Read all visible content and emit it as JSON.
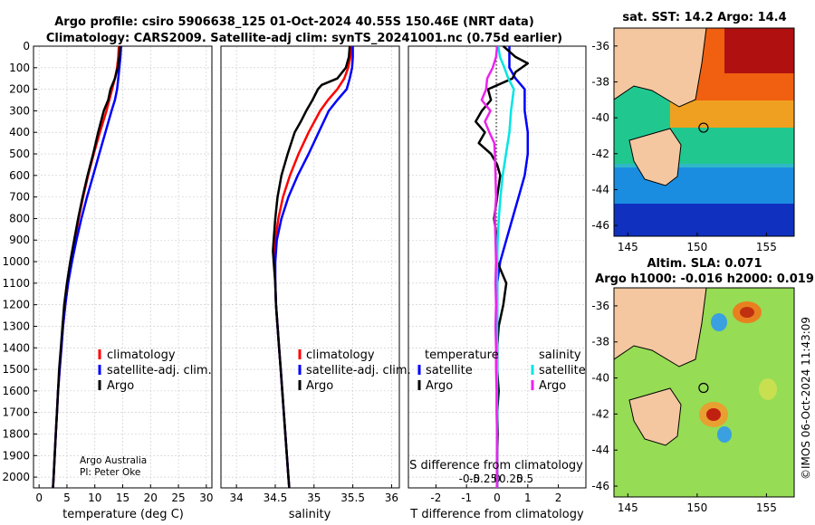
{
  "header": {
    "title_line1": "Argo profile: csiro 5906638_125 01-Oct-2024 40.55S 150.46E (NRT data)",
    "title_line2": "Climatology: CARS2009. Satellite-adj clim: synTS_20241001.nc (0.75d earlier)"
  },
  "credit": {
    "line1": "Argo Australia",
    "line2": "PI: Peter Oke"
  },
  "timestamp": "©IMOS 06-Oct-2024 11:43:09",
  "colors": {
    "climatology": "#ff0000",
    "satellite": "#0000ff",
    "argo": "#000000",
    "sat_diff_t": "#00e5e5",
    "argo_diff_s": "#ee22ee",
    "zero_line": "#000000"
  },
  "depth_axis": {
    "ticks": [
      0,
      100,
      200,
      300,
      400,
      500,
      600,
      700,
      800,
      900,
      1000,
      1100,
      1200,
      1300,
      1400,
      1500,
      1600,
      1700,
      1800,
      1900,
      2000
    ],
    "range": [
      0,
      2050
    ]
  },
  "chart_data": [
    {
      "type": "line",
      "name": "temperature",
      "xlabel": "temperature (deg C)",
      "xlim": [
        -1,
        31
      ],
      "xticks": [
        0,
        5,
        10,
        15,
        20,
        25,
        30
      ],
      "legend": {
        "climatology": "climatology",
        "satellite": "satellite-adj. clim.",
        "argo": "Argo"
      },
      "series": [
        {
          "name": "climatology",
          "color": "#ff0000",
          "depth": [
            0,
            50,
            100,
            150,
            200,
            250,
            300,
            400,
            500,
            600,
            700,
            800,
            900,
            1000,
            1100,
            1200,
            1300,
            1400,
            1500,
            1600,
            1700,
            1800,
            1900,
            2000,
            2050
          ],
          "values": [
            14.3,
            14.2,
            14.0,
            13.6,
            13.1,
            12.6,
            12.1,
            10.9,
            9.8,
            8.8,
            7.9,
            7.1,
            6.4,
            5.8,
            5.2,
            4.7,
            4.3,
            4.0,
            3.7,
            3.4,
            3.2,
            3.0,
            2.8,
            2.6,
            2.5
          ]
        },
        {
          "name": "satellite",
          "color": "#0000ff",
          "depth": [
            0,
            50,
            100,
            150,
            200,
            250,
            300,
            400,
            500,
            600,
            700,
            800,
            900,
            1000,
            1100,
            1200,
            1300,
            1400,
            1500,
            1600,
            1700,
            1800,
            1900,
            2000,
            2050
          ],
          "values": [
            14.7,
            14.6,
            14.4,
            14.2,
            14.0,
            13.6,
            13.0,
            11.9,
            10.8,
            9.7,
            8.6,
            7.6,
            6.7,
            5.9,
            5.2,
            4.7,
            4.3,
            4.0,
            3.7,
            3.4,
            3.2,
            3.0,
            2.8,
            2.6,
            2.5
          ]
        },
        {
          "name": "argo",
          "color": "#000000",
          "depth": [
            0,
            50,
            100,
            150,
            200,
            250,
            300,
            350,
            400,
            500,
            600,
            700,
            800,
            900,
            1000,
            1100,
            1200,
            1300,
            1400,
            1500,
            1600,
            1700,
            1800,
            1900,
            2000,
            2050
          ],
          "values": [
            14.5,
            14.4,
            14.1,
            13.6,
            12.8,
            12.4,
            11.6,
            11.1,
            10.6,
            9.7,
            8.7,
            7.8,
            7.0,
            6.3,
            5.6,
            5.0,
            4.5,
            4.2,
            3.9,
            3.6,
            3.4,
            3.2,
            3.0,
            2.8,
            2.6,
            2.5
          ]
        }
      ]
    },
    {
      "type": "line",
      "name": "salinity",
      "xlabel": "salinity",
      "xlim": [
        33.8,
        36.1
      ],
      "xticks": [
        34,
        34.5,
        35,
        35.5,
        36
      ],
      "xticklabels": [
        "34",
        "34.5",
        "35",
        "35.5",
        "36"
      ],
      "legend": {
        "climatology": "climatology",
        "satellite": "satellite-adj. clim.",
        "argo": "Argo"
      },
      "series": [
        {
          "name": "climatology",
          "color": "#ff0000",
          "depth": [
            0,
            50,
            100,
            150,
            200,
            250,
            300,
            400,
            500,
            600,
            700,
            800,
            900,
            1000,
            1100,
            1200,
            1300,
            1400,
            1500,
            1600,
            1700,
            1800,
            1900,
            2000,
            2050
          ],
          "values": [
            35.48,
            35.47,
            35.44,
            35.39,
            35.3,
            35.18,
            35.08,
            34.93,
            34.8,
            34.69,
            34.6,
            34.54,
            34.5,
            34.49,
            34.5,
            34.51,
            34.53,
            34.55,
            34.57,
            34.59,
            34.61,
            34.63,
            34.65,
            34.67,
            34.68
          ]
        },
        {
          "name": "satellite",
          "color": "#0000ff",
          "depth": [
            0,
            50,
            100,
            150,
            200,
            250,
            300,
            400,
            500,
            600,
            700,
            800,
            900,
            1000,
            1100,
            1200,
            1300,
            1400,
            1500,
            1600,
            1700,
            1800,
            1900,
            2000,
            2050
          ],
          "values": [
            35.5,
            35.5,
            35.49,
            35.46,
            35.42,
            35.3,
            35.19,
            35.06,
            34.93,
            34.79,
            34.67,
            34.58,
            34.52,
            34.5,
            34.5,
            34.51,
            34.53,
            34.55,
            34.57,
            34.59,
            34.61,
            34.63,
            34.65,
            34.67,
            34.68
          ]
        },
        {
          "name": "argo",
          "color": "#000000",
          "depth": [
            0,
            50,
            100,
            150,
            180,
            200,
            250,
            300,
            350,
            400,
            500,
            600,
            700,
            800,
            900,
            950,
            1000,
            1100,
            1200,
            1300,
            1400,
            1500,
            1600,
            1700,
            1800,
            1900,
            2000,
            2050
          ],
          "values": [
            35.46,
            35.45,
            35.41,
            35.3,
            35.1,
            35.05,
            34.98,
            34.9,
            34.83,
            34.75,
            34.66,
            34.58,
            34.53,
            34.5,
            34.48,
            34.47,
            34.48,
            34.5,
            34.51,
            34.53,
            34.55,
            34.57,
            34.59,
            34.61,
            34.63,
            34.65,
            34.67,
            34.68
          ]
        }
      ]
    },
    {
      "type": "line",
      "name": "differences",
      "xlabel": "T difference from climatology",
      "xlim": [
        -2.9,
        2.9
      ],
      "xticks": [
        -2,
        -1,
        0,
        1,
        2
      ],
      "s_axis_label": "S difference from climatology",
      "s_ticks": [
        -0.5,
        -0.25,
        0,
        0.25,
        0.5
      ],
      "s_ticklabels": [
        "-0.5",
        "-0.25",
        "0",
        "0.25",
        "0.5"
      ],
      "legend": {
        "temperature_title": "temperature",
        "salinity_title": "salinity",
        "satellite": "satellite",
        "argo": "Argo"
      },
      "series": [
        {
          "name": "T satellite",
          "color": "#0000ff",
          "depth": [
            0,
            50,
            100,
            150,
            200,
            300,
            400,
            500,
            600,
            700,
            800,
            900,
            1000,
            1100,
            1200,
            1300,
            1400,
            1500,
            1600,
            1700,
            1800,
            1900,
            2000,
            2050
          ],
          "values": [
            0.4,
            0.4,
            0.4,
            0.6,
            0.9,
            0.9,
            1.0,
            1.0,
            0.9,
            0.7,
            0.5,
            0.3,
            0.1,
            0.0,
            0.0,
            0.0,
            0.0,
            0.0,
            0.0,
            0.0,
            0.0,
            0.0,
            0.0,
            0.0
          ]
        },
        {
          "name": "T argo",
          "color": "#000000",
          "depth": [
            0,
            50,
            80,
            120,
            150,
            200,
            250,
            300,
            350,
            400,
            450,
            500,
            550,
            600,
            700,
            800,
            900,
            1000,
            1100,
            1200,
            1300,
            1400,
            1500,
            1600,
            1700,
            1800,
            1900,
            2000,
            2050
          ],
          "values": [
            0.2,
            0.6,
            1.0,
            0.6,
            0.5,
            -0.3,
            -0.2,
            -0.5,
            -0.7,
            -0.4,
            -0.6,
            -0.2,
            0.0,
            0.1,
            0.0,
            -0.1,
            0.0,
            0.0,
            0.3,
            0.2,
            0.05,
            0.0,
            0.0,
            0.05,
            0.0,
            0.02,
            0.0,
            0.0,
            0.0
          ]
        },
        {
          "name": "S satellite",
          "color": "#00e5e5",
          "depth": [
            0,
            50,
            100,
            150,
            200,
            300,
            400,
            500,
            600,
            700,
            800,
            900,
            1000,
            1100,
            1200,
            1300,
            1400,
            1500,
            1600,
            1700,
            1800,
            1900,
            2000,
            2050
          ],
          "values": [
            0.02,
            0.05,
            0.13,
            0.2,
            0.3,
            0.25,
            0.22,
            0.16,
            0.1,
            0.06,
            0.03,
            0.01,
            0.0,
            0.0,
            0.0,
            0.0,
            0.0,
            0.0,
            0.0,
            0.0,
            0.0,
            0.0,
            0.0,
            0.0
          ]
        },
        {
          "name": "S argo",
          "color": "#ee22ee",
          "depth": [
            0,
            50,
            100,
            150,
            200,
            250,
            300,
            350,
            400,
            450,
            500,
            600,
            700,
            800,
            900,
            1000,
            1100,
            1200,
            1300,
            1400,
            1500,
            1600,
            1700,
            1800,
            1900,
            2000,
            2050
          ],
          "values": [
            0.0,
            -0.02,
            -0.08,
            -0.18,
            -0.2,
            -0.28,
            -0.12,
            -0.22,
            -0.14,
            -0.05,
            -0.04,
            -0.03,
            -0.02,
            -0.04,
            -0.03,
            -0.02,
            -0.03,
            -0.02,
            -0.03,
            -0.02,
            -0.02,
            -0.01,
            -0.01,
            0.0,
            0.0,
            0.0,
            0.0
          ]
        }
      ]
    },
    {
      "type": "heatmap",
      "name": "sst_map",
      "title": "sat. SST: 14.2 Argo: 14.4",
      "xticks": [
        145,
        150,
        155
      ],
      "xlim": [
        144,
        157
      ],
      "yticks": [
        -36,
        -38,
        -40,
        -42,
        -44,
        -46
      ],
      "ylim": [
        -46.6,
        -35
      ],
      "argo_position": {
        "lon": 150.46,
        "lat": -40.55
      },
      "value_range": [
        8,
        22
      ]
    },
    {
      "type": "heatmap",
      "name": "sla_map",
      "title_line1": "Altim. SLA: 0.071",
      "title_line2": "Argo h1000: -0.016 h2000: 0.019",
      "xticks": [
        145,
        150,
        155
      ],
      "xlim": [
        144,
        157
      ],
      "yticks": [
        -36,
        -38,
        -40,
        -42,
        -44,
        -46
      ],
      "ylim": [
        -46.6,
        -35
      ],
      "argo_position": {
        "lon": 150.46,
        "lat": -40.55
      },
      "value_range": [
        -0.3,
        0.3
      ]
    }
  ]
}
